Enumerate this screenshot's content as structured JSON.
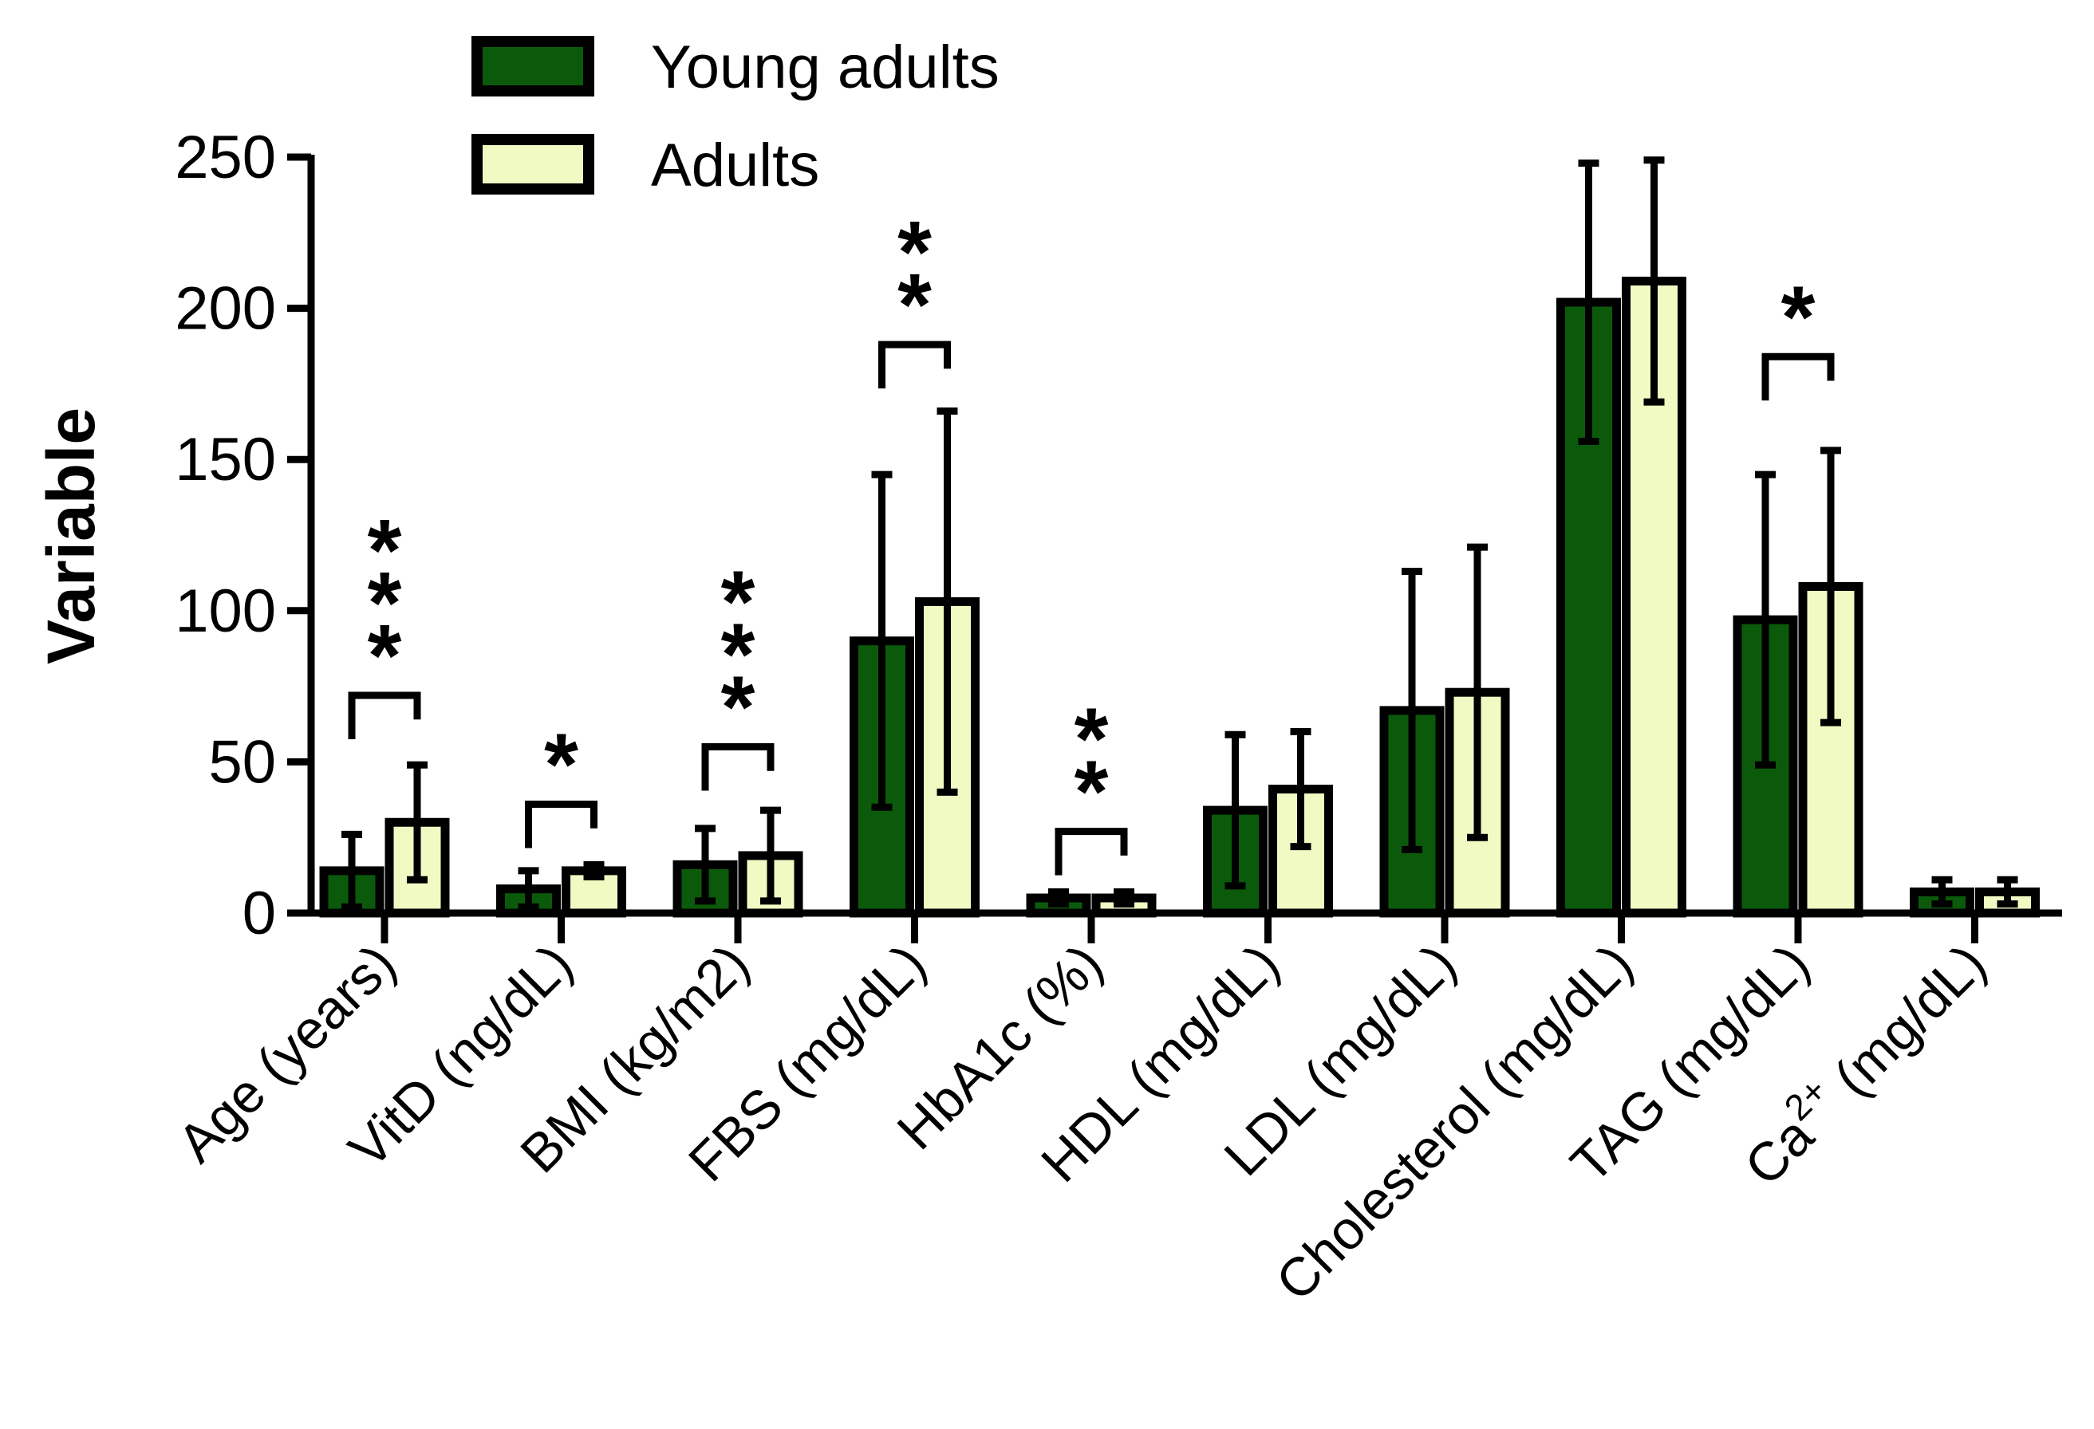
{
  "chart_data": {
    "type": "bar",
    "title": "",
    "xlabel": "",
    "ylabel": "Variable",
    "ylim": [
      0,
      250
    ],
    "yticks": [
      0,
      50,
      100,
      150,
      200,
      250
    ],
    "grid": false,
    "legend_position": "top-left",
    "categories": [
      "Age (years)",
      "VitD (ng/dL)",
      "BMI (kg/m2)",
      "FBS (mg/dL)",
      "HbA1c (%)",
      "HDL (mg/dL)",
      "LDL (mg/dL)",
      "Cholesterol (mg/dL)",
      "TAG (mg/dL)",
      "Ca2+ (mg/dL)"
    ],
    "category_label_parts": [
      {
        "base": "Age (years)",
        "sup": "",
        "tail": ""
      },
      {
        "base": "VitD (ng/dL)",
        "sup": "",
        "tail": ""
      },
      {
        "base": "BMI (kg/m2)",
        "sup": "",
        "tail": ""
      },
      {
        "base": "FBS (mg/dL)",
        "sup": "",
        "tail": ""
      },
      {
        "base": "HbA1c (%)",
        "sup": "",
        "tail": ""
      },
      {
        "base": "HDL (mg/dL)",
        "sup": "",
        "tail": ""
      },
      {
        "base": "LDL (mg/dL)",
        "sup": "",
        "tail": ""
      },
      {
        "base": "Cholesterol (mg/dL)",
        "sup": "",
        "tail": ""
      },
      {
        "base": "TAG (mg/dL)",
        "sup": "",
        "tail": ""
      },
      {
        "base": "Ca",
        "sup": "2+",
        "tail": " (mg/dL)"
      }
    ],
    "series": [
      {
        "name": "Young adults",
        "color": "#0b5a0b",
        "values": [
          14,
          8,
          16,
          90,
          5,
          34,
          67,
          202,
          97,
          7
        ],
        "errors": [
          12,
          6,
          12,
          55,
          2,
          25,
          46,
          46,
          48,
          4
        ]
      },
      {
        "name": "Adults",
        "color": "#f2fac4",
        "values": [
          30,
          14,
          19,
          103,
          5,
          41,
          73,
          209,
          108,
          7
        ],
        "errors": [
          19,
          2,
          15,
          63,
          2,
          19,
          48,
          40,
          45,
          4
        ]
      }
    ],
    "annotations": [
      {
        "category": "Age (years)",
        "text": "***",
        "bracket_level": 72
      },
      {
        "category": "VitD (ng/dL)",
        "text": "*",
        "bracket_level": 36
      },
      {
        "category": "BMI (kg/m2)",
        "text": "***",
        "bracket_level": 55
      },
      {
        "category": "FBS (mg/dL)",
        "text": "**",
        "bracket_level": 188
      },
      {
        "category": "HbA1c (%)",
        "text": "**",
        "bracket_level": 27
      },
      {
        "category": "TAG (mg/dL)",
        "text": "*",
        "bracket_level": 184
      }
    ]
  }
}
